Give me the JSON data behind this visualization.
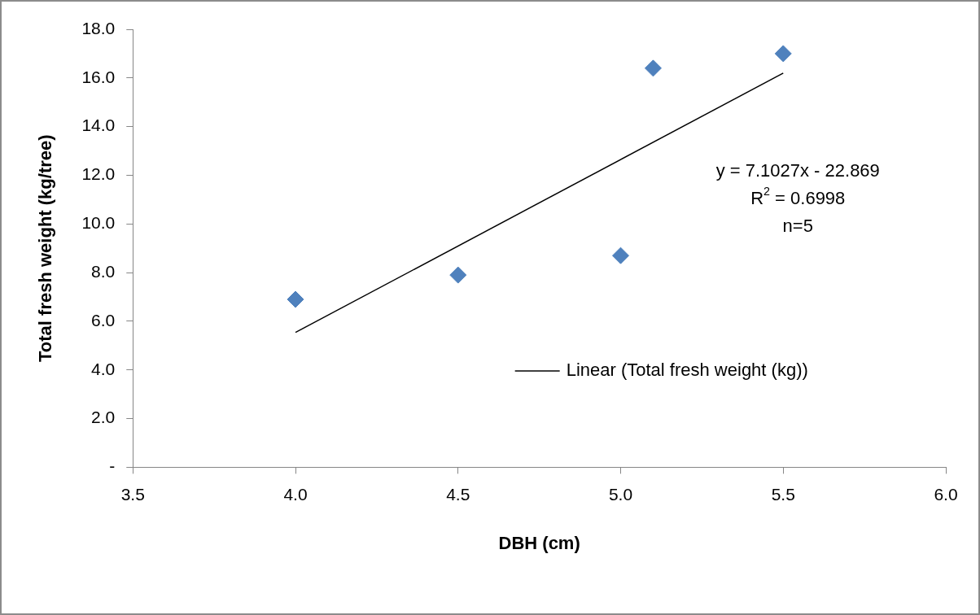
{
  "chart_data": {
    "type": "scatter",
    "xlabel": "DBH (cm)",
    "ylabel": "Total fresh weight (kg/tree)",
    "xlim": [
      3.5,
      6.0
    ],
    "xticks": [
      {
        "value": 3.5,
        "label": "3.5"
      },
      {
        "value": 4,
        "label": "4.0"
      },
      {
        "value": 4.5,
        "label": "4.5"
      },
      {
        "value": 5,
        "label": "5.0"
      },
      {
        "value": 5.5,
        "label": "5.5"
      },
      {
        "value": 6,
        "label": "6.0"
      }
    ],
    "ylim": [
      0,
      18
    ],
    "yticks": [
      {
        "value": 0,
        "label": "-"
      },
      {
        "value": 2,
        "label": "2.0"
      },
      {
        "value": 4,
        "label": "4.0"
      },
      {
        "value": 6,
        "label": "6.0"
      },
      {
        "value": 8,
        "label": "8.0"
      },
      {
        "value": 10,
        "label": "10.0"
      },
      {
        "value": 12,
        "label": "12.0"
      },
      {
        "value": 14,
        "label": "14.0"
      },
      {
        "value": 16,
        "label": "16.0"
      },
      {
        "value": 18,
        "label": "18.0"
      }
    ],
    "grid": false,
    "legend": "right",
    "series": [
      {
        "type": "scatter",
        "marker": "diamond",
        "color": "#4f81bd",
        "x": [
          4.0,
          4.5,
          5.0,
          5.1,
          5.5
        ],
        "values": [
          6.9,
          7.9,
          8.7,
          16.4,
          17.0
        ]
      },
      {
        "type": "line",
        "marker": "none",
        "name": "Linear (Total fresh weight (kg))",
        "color": "#000000",
        "x": [
          4.0,
          5.5
        ],
        "values": [
          5.54,
          16.2
        ]
      }
    ],
    "annotations": [
      "y = 7.1027x - 22.869",
      "R$^{2}$ = 0.6998",
      "n=5"
    ]
  }
}
